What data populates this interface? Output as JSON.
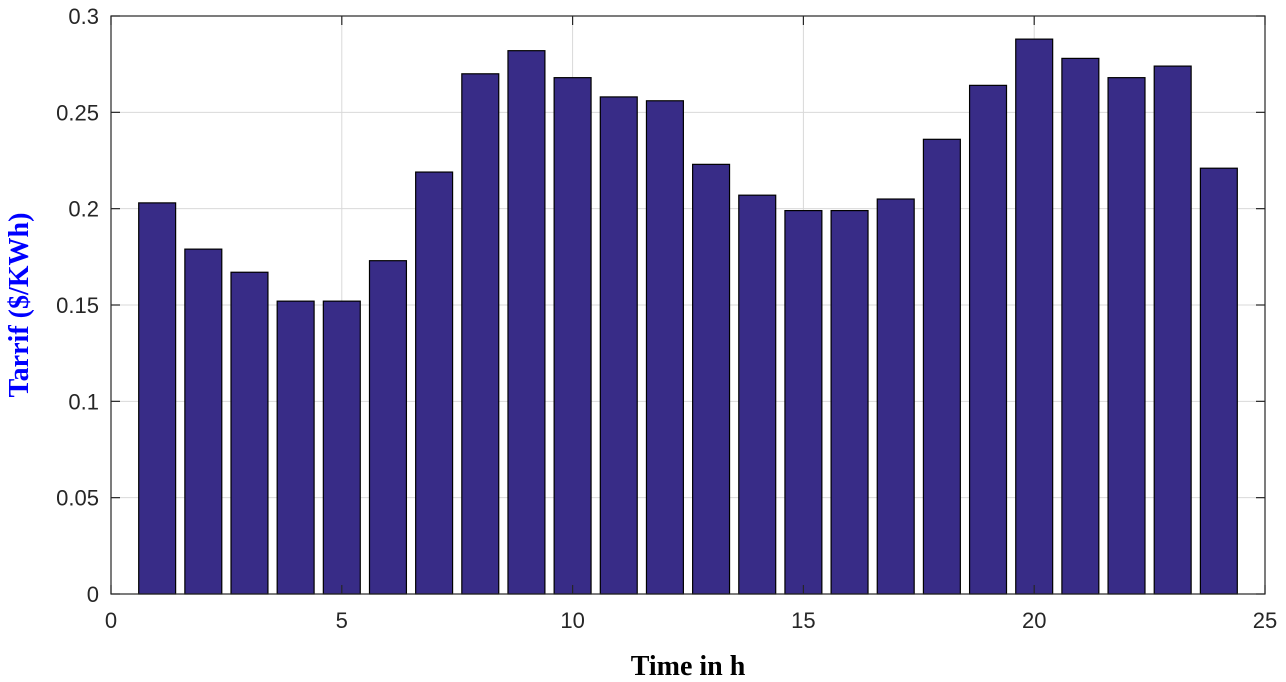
{
  "chart_data": {
    "type": "bar",
    "x": [
      1,
      2,
      3,
      4,
      5,
      6,
      7,
      8,
      9,
      10,
      11,
      12,
      13,
      14,
      15,
      16,
      17,
      18,
      19,
      20,
      21,
      22,
      23,
      24
    ],
    "values": [
      0.203,
      0.179,
      0.167,
      0.152,
      0.152,
      0.173,
      0.219,
      0.27,
      0.282,
      0.268,
      0.258,
      0.256,
      0.223,
      0.207,
      0.199,
      0.199,
      0.205,
      0.236,
      0.264,
      0.288,
      0.278,
      0.268,
      0.274,
      0.221
    ],
    "xlabel": "Time in h",
    "ylabel": "Tarrif ($/KWh)",
    "xlim": [
      0,
      25
    ],
    "ylim": [
      0,
      0.3
    ],
    "x_ticks": [
      0,
      5,
      10,
      15,
      20,
      25
    ],
    "x_tick_labels": [
      "0",
      "5",
      "10",
      "15",
      "20",
      "25"
    ],
    "y_ticks": [
      0,
      0.05,
      0.1,
      0.15,
      0.2,
      0.25,
      0.3
    ],
    "y_tick_labels": [
      "0",
      "0.05",
      "0.1",
      "0.15",
      "0.2",
      "0.25",
      "0.3"
    ],
    "grid": true,
    "bar_color": "#382c87",
    "ylabel_color": "#0000ff"
  }
}
